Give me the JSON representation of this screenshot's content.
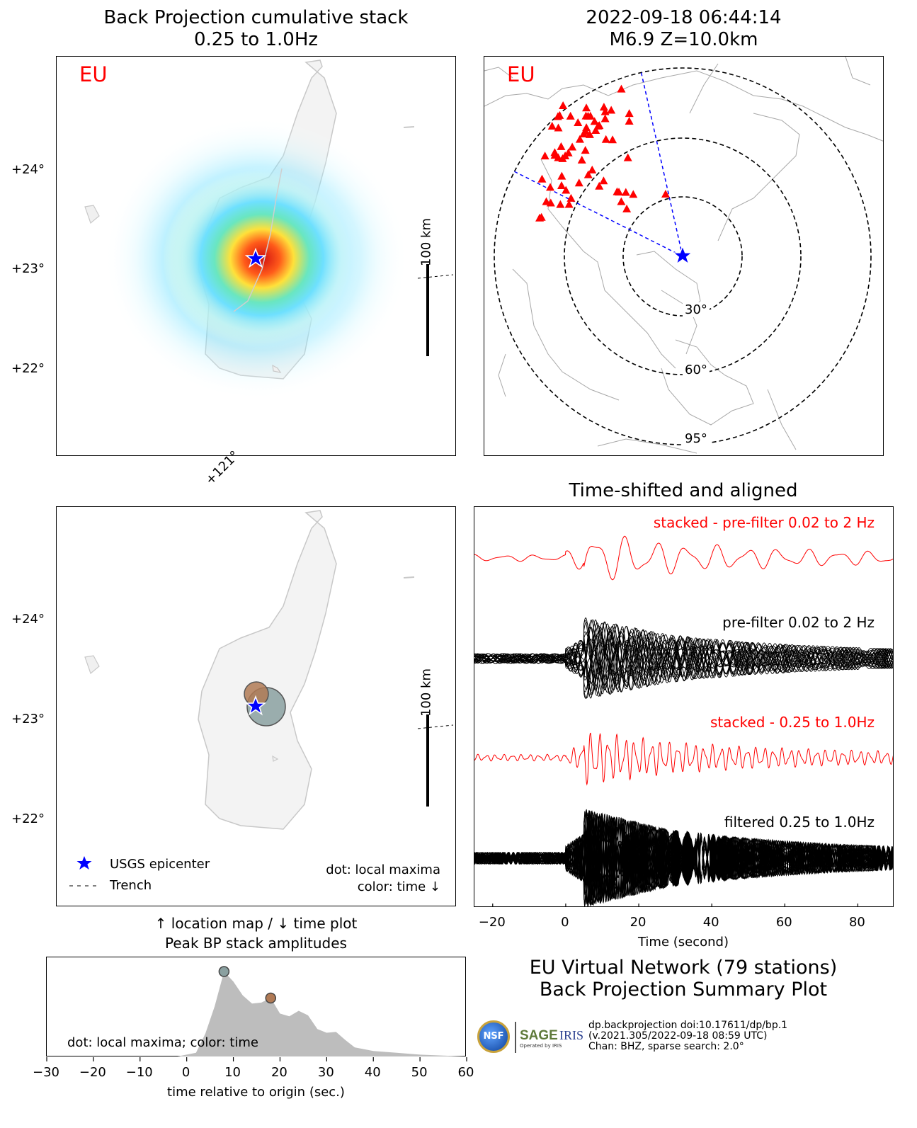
{
  "left_top": {
    "title1": "Back Projection cumulative stack",
    "title2": "0.25 to 1.0Hz",
    "network_label": "EU",
    "lat_ticks": [
      "+24°",
      "+23°",
      "+22°"
    ],
    "scale_label": "100 km",
    "lon_tick": "+121°"
  },
  "right_top": {
    "title1": "2022-09-18 06:44:14",
    "title2": "M6.9 Z=10.0km",
    "network_label": "EU",
    "ring_labels": [
      "30°",
      "60°",
      "95°"
    ]
  },
  "left_mid": {
    "lat_ticks": [
      "+24°",
      "+23°",
      "+22°"
    ],
    "scale_label": "100 km",
    "legend_epicenter": "USGS epicenter",
    "legend_trench": "Trench",
    "note1": "dot: local maxima",
    "note2": "color: time ↓",
    "caption1": "↑ location map / ↓ time plot",
    "caption2": "Peak BP stack amplitudes"
  },
  "right_mid": {
    "title": "Time-shifted and aligned",
    "trace_labels": [
      "stacked - pre-filter 0.02 to 2 Hz",
      "pre-filter 0.02 to 2 Hz",
      "stacked - 0.25 to 1.0Hz",
      "filtered 0.25 to 1.0Hz"
    ],
    "xticks": [
      "−20",
      "0",
      "20",
      "40",
      "60",
      "80"
    ],
    "xlabel": "Time (second)"
  },
  "bottom_left": {
    "note": "dot: local maxima; color: time",
    "xticks": [
      "−30",
      "−20",
      "−10",
      "0",
      "10",
      "20",
      "30",
      "40",
      "50",
      "60"
    ],
    "xlabel": "time relative to origin (sec.)"
  },
  "summary": {
    "line1": "EU Virtual Network (79 stations)",
    "line2": "Back Projection Summary Plot",
    "credit1": "dp.backprojection doi:10.17611/dp/bp.1",
    "credit2": "(v.2021.305/2022-09-18 08:59 UTC)",
    "credit3": "Chan: BHZ, sparse search: 2.0°",
    "logo_nsf": "NSF",
    "logo_sage": "SAGE",
    "logo_sage_sub": "Operated by IRIS",
    "logo_iris": "IRIS"
  },
  "colors": {
    "red": "#ff0000",
    "blue": "#0000ff",
    "land": "#f3f3f3",
    "coast": "#c8c8c8",
    "early_dot": "#8aa0a0",
    "late_dot": "#b07a55",
    "fill": "#bdbdbd"
  },
  "chart_data": [
    {
      "type": "area",
      "x": [
        -30,
        -2,
        2,
        4,
        6,
        8,
        10,
        12,
        14,
        16,
        18,
        20,
        22,
        24,
        26,
        28,
        30,
        32,
        34,
        36,
        40,
        45,
        50,
        55,
        60
      ],
      "y": [
        0,
        0,
        0.04,
        0.25,
        0.55,
        0.93,
        0.82,
        0.67,
        0.58,
        0.59,
        0.64,
        0.47,
        0.44,
        0.5,
        0.45,
        0.3,
        0.26,
        0.27,
        0.18,
        0.1,
        0.06,
        0.04,
        0.02,
        0.01,
        0
      ],
      "xlim": [
        -30,
        60
      ],
      "xlabel": "time relative to origin (sec.)",
      "peaks": [
        {
          "x": 8,
          "y": 0.93,
          "color": "#8aa0a0"
        },
        {
          "x": 18,
          "y": 0.64,
          "color": "#b07a55"
        }
      ]
    },
    {
      "type": "line",
      "xlim": [
        -25,
        90
      ],
      "xlabel": "Time (second)",
      "series": [
        "stacked - pre-filter 0.02 to 2 Hz",
        "pre-filter 0.02 to 2 Hz",
        "stacked - 0.25 to 1.0Hz",
        "filtered 0.25 to 1.0Hz"
      ]
    }
  ]
}
